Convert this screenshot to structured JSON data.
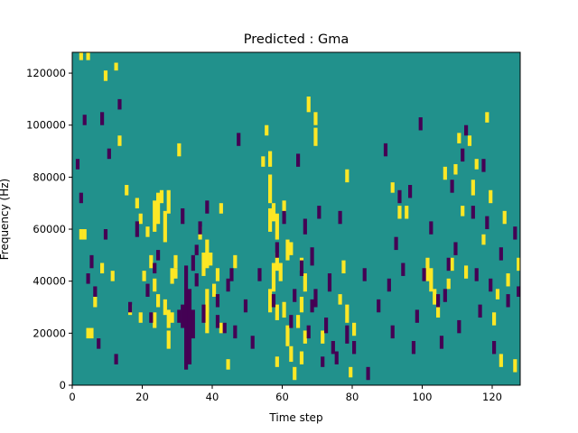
{
  "chart_data": {
    "type": "heatmap",
    "title": "Predicted : Gma",
    "xlabel": "Time step",
    "ylabel": "Frequency (Hz)",
    "xlim": [
      0,
      128
    ],
    "ylim": [
      0,
      128000
    ],
    "xticks": [
      0,
      20,
      40,
      60,
      80,
      100,
      120
    ],
    "yticks": [
      0,
      20000,
      40000,
      60000,
      80000,
      100000,
      120000
    ],
    "n_time": 128,
    "n_freq": 128,
    "values_legend": {
      "-1": "dark purple",
      "0": "teal",
      "1": "yellow"
    },
    "colors": {
      "neg": "#440154",
      "zero": "#21918c",
      "pos": "#fde725"
    },
    "high_runs": [
      [
        2,
        125,
        127
      ],
      [
        4,
        125,
        127
      ],
      [
        3,
        56,
        59
      ],
      [
        2,
        56,
        59
      ],
      [
        4,
        18,
        21
      ],
      [
        5,
        18,
        21
      ],
      [
        6,
        30,
        33
      ],
      [
        8,
        43,
        46
      ],
      [
        11,
        40,
        43
      ],
      [
        13,
        92,
        95
      ],
      [
        12,
        121,
        123
      ],
      [
        9,
        117,
        120
      ],
      [
        15,
        73,
        76
      ],
      [
        16,
        27,
        30
      ],
      [
        18,
        68,
        71
      ],
      [
        19,
        62,
        65
      ],
      [
        19,
        24,
        27
      ],
      [
        20,
        40,
        43
      ],
      [
        21,
        57,
        60
      ],
      [
        22,
        45,
        49
      ],
      [
        23,
        22,
        27
      ],
      [
        23,
        36,
        40
      ],
      [
        23,
        59,
        70
      ],
      [
        24,
        30,
        34
      ],
      [
        24,
        62,
        73
      ],
      [
        25,
        70,
        74
      ],
      [
        26,
        27,
        32
      ],
      [
        26,
        55,
        66
      ],
      [
        27,
        14,
        20
      ],
      [
        27,
        22,
        28
      ],
      [
        27,
        66,
        74
      ],
      [
        28,
        24,
        27
      ],
      [
        28,
        39,
        44
      ],
      [
        29,
        45,
        49
      ],
      [
        29,
        41,
        44
      ],
      [
        30,
        88,
        92
      ],
      [
        36,
        56,
        60
      ],
      [
        37,
        42,
        50
      ],
      [
        38,
        28,
        36
      ],
      [
        38,
        45,
        55
      ],
      [
        38,
        20,
        29
      ],
      [
        39,
        46,
        50
      ],
      [
        40,
        34,
        38
      ],
      [
        41,
        40,
        44
      ],
      [
        42,
        20,
        23
      ],
      [
        42,
        66,
        69
      ],
      [
        44,
        6,
        9
      ],
      [
        46,
        45,
        49
      ],
      [
        54,
        84,
        87
      ],
      [
        55,
        96,
        99
      ],
      [
        56,
        28,
        36
      ],
      [
        56,
        59,
        67
      ],
      [
        56,
        70,
        80
      ],
      [
        56,
        84,
        89
      ],
      [
        57,
        36,
        46
      ],
      [
        57,
        63,
        69
      ],
      [
        58,
        25,
        30
      ],
      [
        58,
        44,
        50
      ],
      [
        58,
        56,
        65
      ],
      [
        58,
        7,
        10
      ],
      [
        59,
        40,
        46
      ],
      [
        60,
        26,
        31
      ],
      [
        60,
        66,
        70
      ],
      [
        61,
        15,
        22
      ],
      [
        61,
        48,
        55
      ],
      [
        62,
        9,
        14
      ],
      [
        62,
        50,
        54
      ],
      [
        63,
        2,
        6
      ],
      [
        64,
        22,
        26
      ],
      [
        65,
        8,
        12
      ],
      [
        65,
        28,
        33
      ],
      [
        65,
        44,
        48
      ],
      [
        66,
        16,
        20
      ],
      [
        66,
        36,
        42
      ],
      [
        67,
        105,
        110
      ],
      [
        69,
        92,
        98
      ],
      [
        69,
        100,
        104
      ],
      [
        71,
        16,
        20
      ],
      [
        76,
        31,
        34
      ],
      [
        77,
        43,
        47
      ],
      [
        78,
        78,
        82
      ],
      [
        78,
        24,
        30
      ],
      [
        79,
        3,
        6
      ],
      [
        91,
        74,
        77
      ],
      [
        95,
        64,
        68
      ],
      [
        101,
        40,
        48
      ],
      [
        102,
        36,
        44
      ],
      [
        103,
        31,
        36
      ],
      [
        104,
        26,
        30
      ],
      [
        107,
        37,
        40
      ],
      [
        108,
        44,
        48
      ],
      [
        109,
        81,
        84
      ],
      [
        110,
        93,
        96
      ],
      [
        111,
        65,
        68
      ],
      [
        112,
        41,
        45
      ],
      [
        114,
        73,
        78
      ],
      [
        115,
        83,
        86
      ],
      [
        117,
        54,
        57
      ],
      [
        119,
        70,
        74
      ],
      [
        120,
        23,
        27
      ],
      [
        121,
        33,
        36
      ],
      [
        122,
        7,
        11
      ],
      [
        123,
        62,
        66
      ],
      [
        124,
        38,
        42
      ],
      [
        126,
        5,
        9
      ],
      [
        127,
        44,
        48
      ],
      [
        80,
        19,
        23
      ],
      [
        93,
        64,
        68
      ],
      [
        106,
        79,
        83
      ],
      [
        113,
        92,
        95
      ],
      [
        118,
        101,
        104
      ]
    ],
    "low_runs": [
      [
        1,
        83,
        86
      ],
      [
        2,
        70,
        73
      ],
      [
        3,
        100,
        103
      ],
      [
        4,
        39,
        42
      ],
      [
        5,
        45,
        49
      ],
      [
        6,
        34,
        37
      ],
      [
        7,
        14,
        17
      ],
      [
        8,
        100,
        104
      ],
      [
        9,
        56,
        59
      ],
      [
        10,
        87,
        90
      ],
      [
        12,
        8,
        11
      ],
      [
        13,
        106,
        109
      ],
      [
        16,
        28,
        31
      ],
      [
        18,
        57,
        62
      ],
      [
        21,
        34,
        38
      ],
      [
        22,
        24,
        27
      ],
      [
        23,
        43,
        46
      ],
      [
        24,
        48,
        51
      ],
      [
        30,
        24,
        28
      ],
      [
        31,
        22,
        30
      ],
      [
        31,
        62,
        67
      ],
      [
        32,
        6,
        45
      ],
      [
        33,
        8,
        36
      ],
      [
        34,
        18,
        28
      ],
      [
        35,
        38,
        42
      ],
      [
        35,
        50,
        53
      ],
      [
        34,
        44,
        49
      ],
      [
        36,
        58,
        62
      ],
      [
        37,
        24,
        30
      ],
      [
        38,
        66,
        70
      ],
      [
        41,
        22,
        26
      ],
      [
        41,
        30,
        34
      ],
      [
        43,
        20,
        23
      ],
      [
        44,
        36,
        40
      ],
      [
        45,
        40,
        44
      ],
      [
        46,
        18,
        22
      ],
      [
        47,
        92,
        96
      ],
      [
        49,
        28,
        32
      ],
      [
        51,
        14,
        18
      ],
      [
        53,
        40,
        44
      ],
      [
        57,
        30,
        34
      ],
      [
        58,
        49,
        54
      ],
      [
        60,
        62,
        66
      ],
      [
        62,
        22,
        26
      ],
      [
        63,
        32,
        36
      ],
      [
        64,
        84,
        88
      ],
      [
        65,
        42,
        47
      ],
      [
        66,
        58,
        63
      ],
      [
        67,
        18,
        22
      ],
      [
        68,
        28,
        32
      ],
      [
        68,
        46,
        52
      ],
      [
        69,
        30,
        36
      ],
      [
        70,
        64,
        68
      ],
      [
        71,
        7,
        10
      ],
      [
        72,
        20,
        25
      ],
      [
        73,
        36,
        42
      ],
      [
        74,
        12,
        16
      ],
      [
        75,
        8,
        12
      ],
      [
        76,
        62,
        66
      ],
      [
        78,
        16,
        22
      ],
      [
        80,
        12,
        16
      ],
      [
        83,
        40,
        44
      ],
      [
        84,
        2,
        6
      ],
      [
        87,
        28,
        32
      ],
      [
        89,
        88,
        92
      ],
      [
        90,
        36,
        40
      ],
      [
        92,
        52,
        56
      ],
      [
        94,
        42,
        46
      ],
      [
        96,
        72,
        76
      ],
      [
        97,
        12,
        16
      ],
      [
        98,
        24,
        28
      ],
      [
        99,
        98,
        102
      ],
      [
        100,
        40,
        44
      ],
      [
        102,
        58,
        62
      ],
      [
        104,
        30,
        34
      ],
      [
        105,
        14,
        18
      ],
      [
        106,
        32,
        36
      ],
      [
        107,
        44,
        48
      ],
      [
        108,
        74,
        78
      ],
      [
        109,
        50,
        54
      ],
      [
        110,
        20,
        24
      ],
      [
        111,
        86,
        90
      ],
      [
        112,
        96,
        99
      ],
      [
        114,
        64,
        68
      ],
      [
        115,
        40,
        44
      ],
      [
        116,
        26,
        30
      ],
      [
        117,
        82,
        86
      ],
      [
        118,
        60,
        64
      ],
      [
        119,
        36,
        40
      ],
      [
        120,
        12,
        16
      ],
      [
        122,
        48,
        52
      ],
      [
        124,
        30,
        34
      ],
      [
        126,
        56,
        60
      ],
      [
        127,
        34,
        37
      ],
      [
        91,
        18,
        22
      ],
      [
        93,
        70,
        74
      ]
    ]
  }
}
